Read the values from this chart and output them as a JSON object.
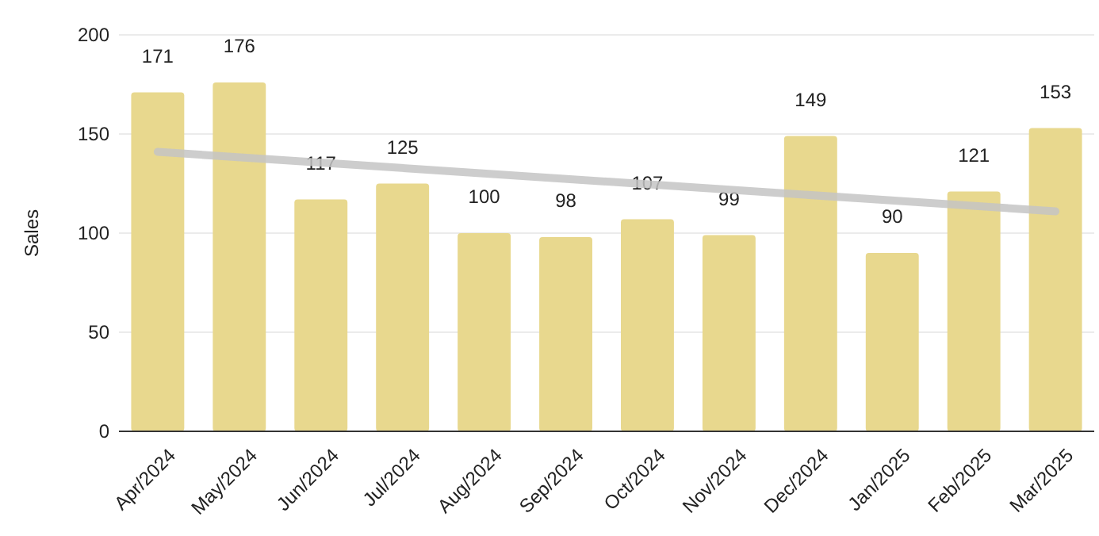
{
  "chart_data": {
    "type": "bar",
    "ylabel": "Sales",
    "categories": [
      "Apr/2024",
      "May/2024",
      "Jun/2024",
      "Jul/2024",
      "Aug/2024",
      "Sep/2024",
      "Oct/2024",
      "Nov/2024",
      "Dec/2024",
      "Jan/2025",
      "Feb/2025",
      "Mar/2025"
    ],
    "series": [
      {
        "color": "#e8d88e",
        "values": [
          171,
          176,
          117,
          125,
          100,
          98,
          107,
          99,
          149,
          90,
          121,
          153
        ],
        "value_labels": [
          "171",
          "176",
          "117",
          "125",
          "100",
          "98",
          "107",
          "99",
          "149",
          "90",
          "121",
          "153"
        ]
      },
      {
        "type": "line",
        "color": "#c4c4c4",
        "x": [
          "Apr/2024",
          "Mar/2025"
        ],
        "values": [
          141,
          111
        ]
      }
    ],
    "ylim": [
      0,
      200
    ],
    "yticks": [
      0,
      50,
      100,
      150,
      200
    ],
    "grid": "y"
  }
}
